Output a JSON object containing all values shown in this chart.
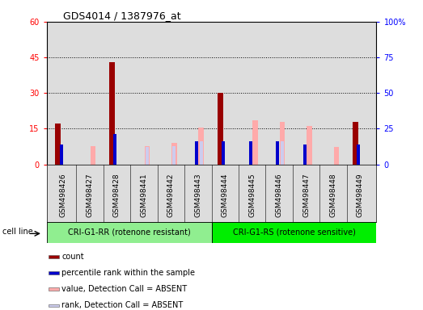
{
  "title": "GDS4014 / 1387976_at",
  "samples": [
    "GSM498426",
    "GSM498427",
    "GSM498428",
    "GSM498441",
    "GSM498442",
    "GSM498443",
    "GSM498444",
    "GSM498445",
    "GSM498446",
    "GSM498447",
    "GSM498448",
    "GSM498449"
  ],
  "count": [
    17,
    0,
    43,
    0,
    0,
    0,
    30,
    0,
    0,
    0,
    0,
    18
  ],
  "percentile_rank": [
    14,
    0,
    21,
    0,
    0,
    16,
    16,
    16,
    16,
    14,
    0,
    14
  ],
  "value_absent": [
    0,
    13,
    0,
    13,
    15,
    26,
    0,
    31,
    30,
    27,
    12,
    0
  ],
  "rank_absent": [
    0,
    0,
    0,
    12,
    13,
    16,
    0,
    0,
    16,
    0,
    0,
    0
  ],
  "cell_line_groups": [
    {
      "label": "CRI-G1-RR (rotenone resistant)",
      "start": 0,
      "end": 6,
      "color": "#90ee90"
    },
    {
      "label": "CRI-G1-RS (rotenone sensitive)",
      "start": 6,
      "end": 12,
      "color": "#00ee00"
    }
  ],
  "cell_line_label": "cell line",
  "ylim_left": [
    0,
    60
  ],
  "ylim_right": [
    0,
    100
  ],
  "yticks_left": [
    0,
    15,
    30,
    45,
    60
  ],
  "yticks_right": [
    0,
    25,
    50,
    75,
    100
  ],
  "ytick_labels_left": [
    "0",
    "15",
    "30",
    "45",
    "60"
  ],
  "ytick_labels_right": [
    "0",
    "25",
    "50",
    "75",
    "100%"
  ],
  "color_count": "#990000",
  "color_rank": "#0000cc",
  "color_value_absent": "#ffaaaa",
  "color_rank_absent": "#ccccee",
  "legend_items": [
    {
      "label": "count",
      "color": "#990000"
    },
    {
      "label": "percentile rank within the sample",
      "color": "#0000cc"
    },
    {
      "label": "value, Detection Call = ABSENT",
      "color": "#ffaaaa"
    },
    {
      "label": "rank, Detection Call = ABSENT",
      "color": "#ccccee"
    }
  ],
  "bg_color": "#dddddd",
  "grid_color": "#000000"
}
